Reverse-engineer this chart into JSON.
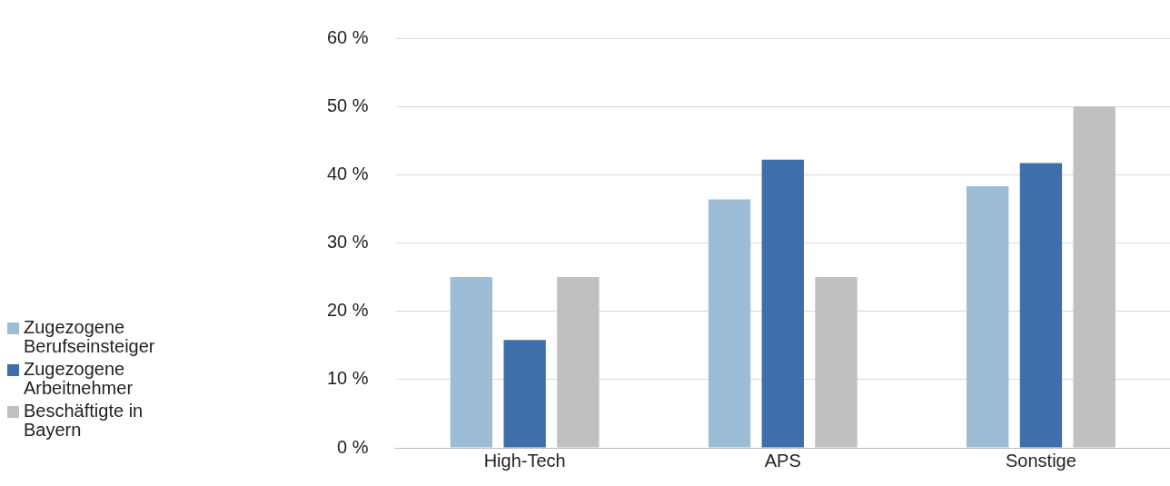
{
  "chart_data": {
    "type": "bar",
    "categories": [
      "High-Tech",
      "APS",
      "Sonstige"
    ],
    "series": [
      {
        "name": "Zugezogene Berufseinsteiger",
        "color": "#9dbdd6",
        "values": [
          25,
          36.4,
          38.3
        ]
      },
      {
        "name": "Zugezogene Arbeitnehmer",
        "color": "#3f6faa",
        "values": [
          15.8,
          42.2,
          41.7
        ]
      },
      {
        "name": "Beschäftigte in Bayern",
        "color": "#c0c0c0",
        "values": [
          25,
          25,
          50
        ]
      }
    ],
    "ylim": [
      0,
      60
    ],
    "yticks": [
      {
        "value": 0,
        "label": "0 %"
      },
      {
        "value": 10,
        "label": "10 %"
      },
      {
        "value": 20,
        "label": "20 %"
      },
      {
        "value": 30,
        "label": "30 %"
      },
      {
        "value": 40,
        "label": "40 %"
      },
      {
        "value": 50,
        "label": "50 %"
      },
      {
        "value": 60,
        "label": "60 %"
      }
    ],
    "grid": "y",
    "legend": "left"
  }
}
